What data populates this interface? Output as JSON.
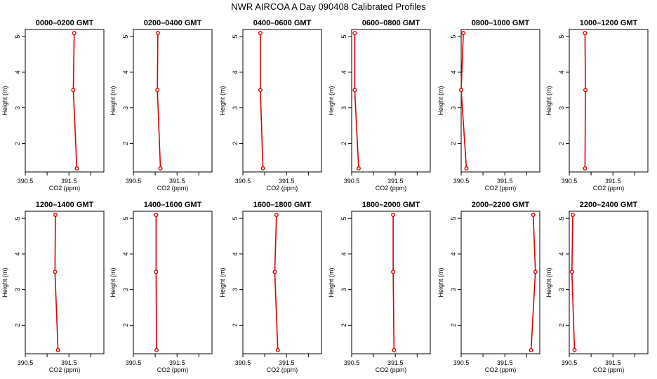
{
  "title": "NWR AIRCOA A  Day 090408  Calibrated Profiles",
  "colors": {
    "profile": "#dd0000",
    "axis": "#000000"
  },
  "chart_data": [
    {
      "type": "line",
      "title": "0000–0200 GMT",
      "xlabel": "CO2 (ppm)",
      "ylabel": "Height (m)",
      "xlim": [
        390.5,
        392.3
      ],
      "ylim": [
        1.2,
        5.2
      ],
      "x_ticks": [
        390.5,
        391.0,
        391.5,
        392.0
      ],
      "x_tick_labels": [
        "390.5",
        "",
        "391.5",
        ""
      ],
      "y_ticks": [
        2,
        3,
        4,
        5
      ],
      "series": [
        {
          "x": [
            391.68,
            391.6,
            391.62
          ],
          "y": [
            1.3,
            3.5,
            5.1
          ]
        }
      ],
      "grid": false
    },
    {
      "type": "line",
      "title": "0200–0400 GMT",
      "xlabel": "CO2 (ppm)",
      "ylabel": "Height (m)",
      "xlim": [
        390.5,
        392.3
      ],
      "ylim": [
        1.2,
        5.2
      ],
      "x_ticks": [
        390.5,
        391.0,
        391.5,
        392.0
      ],
      "x_tick_labels": [
        "390.5",
        "",
        "391.5",
        ""
      ],
      "y_ticks": [
        2,
        3,
        4,
        5
      ],
      "series": [
        {
          "x": [
            391.12,
            391.05,
            391.06
          ],
          "y": [
            1.3,
            3.5,
            5.1
          ]
        }
      ],
      "grid": false
    },
    {
      "type": "line",
      "title": "0400–0600 GMT",
      "xlabel": "CO2 (ppm)",
      "ylabel": "Height (m)",
      "xlim": [
        390.5,
        392.3
      ],
      "ylim": [
        1.2,
        5.2
      ],
      "x_ticks": [
        390.5,
        391.0,
        391.5,
        392.0
      ],
      "x_tick_labels": [
        "390.5",
        "",
        "391.5",
        ""
      ],
      "y_ticks": [
        2,
        3,
        4,
        5
      ],
      "series": [
        {
          "x": [
            390.96,
            390.9,
            390.9
          ],
          "y": [
            1.3,
            3.5,
            5.1
          ]
        }
      ],
      "grid": false
    },
    {
      "type": "line",
      "title": "0600–0800 GMT",
      "xlabel": "CO2 (ppm)",
      "ylabel": "Height (m)",
      "xlim": [
        390.5,
        392.3
      ],
      "ylim": [
        1.2,
        5.2
      ],
      "x_ticks": [
        390.5,
        391.0,
        391.5,
        392.0
      ],
      "x_tick_labels": [
        "390.5",
        "",
        "391.5",
        ""
      ],
      "y_ticks": [
        2,
        3,
        4,
        5
      ],
      "series": [
        {
          "x": [
            390.66,
            390.57,
            390.57
          ],
          "y": [
            1.3,
            3.5,
            5.1
          ]
        }
      ],
      "grid": false
    },
    {
      "type": "line",
      "title": "0800–1000 GMT",
      "xlabel": "CO2 (ppm)",
      "ylabel": "Height (m)",
      "xlim": [
        390.5,
        392.3
      ],
      "ylim": [
        1.2,
        5.2
      ],
      "x_ticks": [
        390.5,
        391.0,
        391.5,
        392.0
      ],
      "x_tick_labels": [
        "390.5",
        "",
        "391.5",
        ""
      ],
      "y_ticks": [
        2,
        3,
        4,
        5
      ],
      "series": [
        {
          "x": [
            390.62,
            390.5,
            390.55
          ],
          "y": [
            1.3,
            3.5,
            5.1
          ]
        }
      ],
      "grid": false
    },
    {
      "type": "line",
      "title": "1000–1200 GMT",
      "xlabel": "CO2 (ppm)",
      "ylabel": "Height (m)",
      "xlim": [
        390.5,
        392.3
      ],
      "ylim": [
        1.2,
        5.2
      ],
      "x_ticks": [
        390.5,
        391.0,
        391.5,
        392.0
      ],
      "x_tick_labels": [
        "390.5",
        "",
        "391.5",
        ""
      ],
      "y_ticks": [
        2,
        3,
        4,
        5
      ],
      "series": [
        {
          "x": [
            390.86,
            390.87,
            390.86
          ],
          "y": [
            1.3,
            3.5,
            5.1
          ]
        }
      ],
      "grid": false
    },
    {
      "type": "line",
      "title": "1200–1400 GMT",
      "xlabel": "CO2 (ppm)",
      "ylabel": "Height (m)",
      "xlim": [
        390.5,
        392.3
      ],
      "ylim": [
        1.2,
        5.2
      ],
      "x_ticks": [
        390.5,
        391.0,
        391.5,
        392.0
      ],
      "x_tick_labels": [
        "390.5",
        "",
        "391.5",
        ""
      ],
      "y_ticks": [
        2,
        3,
        4,
        5
      ],
      "series": [
        {
          "x": [
            391.25,
            391.18,
            391.19
          ],
          "y": [
            1.3,
            3.5,
            5.1
          ]
        }
      ],
      "grid": false
    },
    {
      "type": "line",
      "title": "1400–1600 GMT",
      "xlabel": "CO2 (ppm)",
      "ylabel": "Height (m)",
      "xlim": [
        390.5,
        392.3
      ],
      "ylim": [
        1.2,
        5.2
      ],
      "x_ticks": [
        390.5,
        391.0,
        391.5,
        392.0
      ],
      "x_tick_labels": [
        "390.5",
        "",
        "391.5",
        ""
      ],
      "y_ticks": [
        2,
        3,
        4,
        5
      ],
      "series": [
        {
          "x": [
            391.03,
            391.02,
            391.02
          ],
          "y": [
            1.3,
            3.5,
            5.1
          ]
        }
      ],
      "grid": false
    },
    {
      "type": "line",
      "title": "1600–1800 GMT",
      "xlabel": "CO2 (ppm)",
      "ylabel": "Height (m)",
      "xlim": [
        390.5,
        392.3
      ],
      "ylim": [
        1.2,
        5.2
      ],
      "x_ticks": [
        390.5,
        391.0,
        391.5,
        392.0
      ],
      "x_tick_labels": [
        "390.5",
        "",
        "391.5",
        ""
      ],
      "y_ticks": [
        2,
        3,
        4,
        5
      ],
      "series": [
        {
          "x": [
            391.3,
            391.23,
            391.27
          ],
          "y": [
            1.3,
            3.5,
            5.1
          ]
        }
      ],
      "grid": false
    },
    {
      "type": "line",
      "title": "1800–2000 GMT",
      "xlabel": "CO2 (ppm)",
      "ylabel": "Height (m)",
      "xlim": [
        390.5,
        392.3
      ],
      "ylim": [
        1.2,
        5.2
      ],
      "x_ticks": [
        390.5,
        391.0,
        391.5,
        392.0
      ],
      "x_tick_labels": [
        "390.5",
        "",
        "391.5",
        ""
      ],
      "y_ticks": [
        2,
        3,
        4,
        5
      ],
      "series": [
        {
          "x": [
            391.47,
            391.45,
            391.45
          ],
          "y": [
            1.3,
            3.5,
            5.1
          ]
        }
      ],
      "grid": false
    },
    {
      "type": "line",
      "title": "2000–2200 GMT",
      "xlabel": "CO2 (ppm)",
      "ylabel": "Height (m)",
      "xlim": [
        390.5,
        392.3
      ],
      "ylim": [
        1.2,
        5.2
      ],
      "x_ticks": [
        390.5,
        391.0,
        391.5,
        392.0
      ],
      "x_tick_labels": [
        "390.5",
        "",
        "391.5",
        ""
      ],
      "y_ticks": [
        2,
        3,
        4,
        5
      ],
      "series": [
        {
          "x": [
            392.1,
            392.2,
            392.15
          ],
          "y": [
            1.3,
            3.5,
            5.1
          ]
        }
      ],
      "grid": false
    },
    {
      "type": "line",
      "title": "2200–2400 GMT",
      "xlabel": "CO2 (ppm)",
      "ylabel": "Height (m)",
      "xlim": [
        390.5,
        392.3
      ],
      "ylim": [
        1.2,
        5.2
      ],
      "x_ticks": [
        390.5,
        391.0,
        391.5,
        392.0
      ],
      "x_tick_labels": [
        "390.5",
        "",
        "391.5",
        ""
      ],
      "y_ticks": [
        2,
        3,
        4,
        5
      ],
      "series": [
        {
          "x": [
            390.62,
            390.56,
            390.58
          ],
          "y": [
            1.3,
            3.5,
            5.1
          ]
        }
      ],
      "grid": false
    }
  ]
}
